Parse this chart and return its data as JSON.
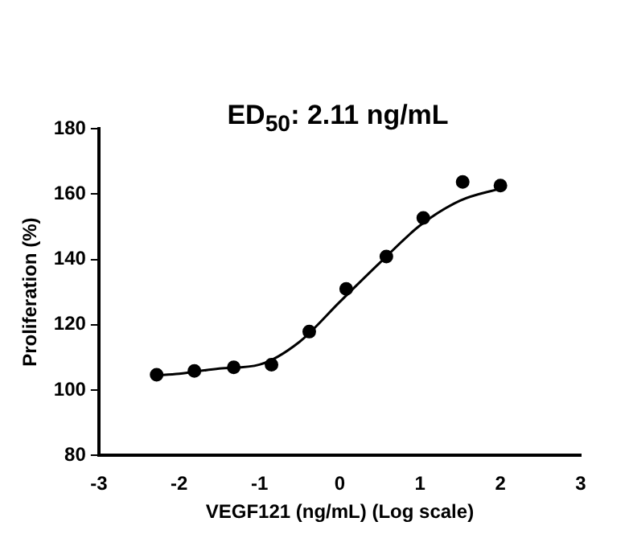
{
  "chart_data": {
    "type": "scatter",
    "title": "ED$_{50}$: 2.11 ng/mL",
    "xlabel": "VEGF121 (ng/mL) (Log scale)",
    "ylabel": "Proliferation (%)",
    "xlim": [
      -3,
      3
    ],
    "xticks": [
      -3,
      -2,
      -1,
      0,
      1,
      2,
      3
    ],
    "ylim": [
      80,
      180
    ],
    "yticks": [
      80,
      100,
      120,
      140,
      160,
      180
    ],
    "grid": false,
    "legend": false,
    "marker": "circle",
    "series": [
      {
        "color": "#000000",
        "x": [
          -2.28,
          -1.81,
          -1.32,
          -0.85,
          -0.38,
          0.08,
          0.58,
          1.04,
          1.53,
          2.0
        ],
        "values": [
          104.7,
          105.9,
          107,
          107.8,
          117.9,
          131,
          140.9,
          152.7,
          163.7,
          162.6
        ]
      },
      {
        "type": "line",
        "color": "#000000",
        "marker": "none",
        "line_style": "solid",
        "x": [
          -2.3,
          -2,
          -1.5,
          -1,
          -0.5,
          0,
          0.5,
          1,
          1.5,
          2
        ],
        "values": [
          104.5,
          105,
          106.6,
          107.8,
          114.8,
          127,
          139,
          150.4,
          158,
          161.7
        ]
      }
    ]
  }
}
